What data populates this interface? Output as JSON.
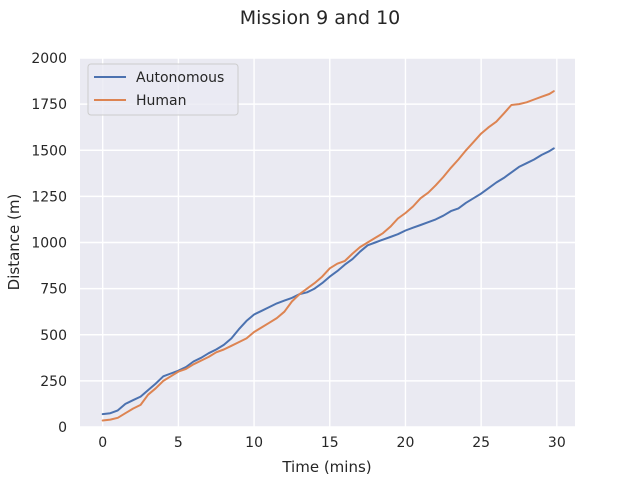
{
  "chart_data": {
    "type": "line",
    "title": "Mission 9 and 10",
    "xlabel": "Time (mins)",
    "ylabel": "Distance (m)",
    "xlim": [
      -1.5,
      31.2
    ],
    "ylim": [
      0,
      2000
    ],
    "xticks": [
      "0",
      "5",
      "10",
      "15",
      "20",
      "25",
      "30"
    ],
    "yticks": [
      "0",
      "250",
      "500",
      "750",
      "1000",
      "1250",
      "1500",
      "1750",
      "2000"
    ],
    "grid": true,
    "legend_position": "top-left",
    "series": [
      {
        "name": "Autonomous",
        "color": "#4c72b0",
        "x": [
          0,
          0.5,
          1,
          1.5,
          2,
          2.5,
          3,
          3.5,
          4,
          4.5,
          5,
          5.5,
          6,
          6.5,
          7,
          7.5,
          8,
          8.5,
          9,
          9.5,
          10,
          10.5,
          11,
          11.5,
          12,
          12.5,
          13,
          13.5,
          14,
          14.5,
          15,
          15.5,
          16,
          16.5,
          17,
          17.5,
          18,
          18.5,
          19,
          19.5,
          20,
          20.5,
          21,
          21.5,
          22,
          22.5,
          23,
          23.5,
          24,
          24.5,
          25,
          25.5,
          26,
          26.5,
          27,
          27.5,
          28,
          28.5,
          29,
          29.5,
          29.8
        ],
        "values": [
          70,
          75,
          90,
          125,
          145,
          165,
          200,
          235,
          275,
          290,
          305,
          325,
          355,
          375,
          400,
          420,
          445,
          480,
          530,
          575,
          610,
          630,
          650,
          670,
          685,
          700,
          720,
          730,
          750,
          780,
          815,
          845,
          880,
          910,
          950,
          985,
          1000,
          1015,
          1030,
          1045,
          1065,
          1080,
          1095,
          1110,
          1125,
          1145,
          1170,
          1185,
          1215,
          1240,
          1265,
          1295,
          1325,
          1350,
          1380,
          1410,
          1430,
          1450,
          1475,
          1495,
          1510
        ]
      },
      {
        "name": "Human",
        "color": "#dd8452",
        "x": [
          0,
          0.5,
          1,
          1.5,
          2,
          2.5,
          3,
          3.5,
          4,
          4.5,
          5,
          5.5,
          6,
          6.5,
          7,
          7.5,
          8,
          8.5,
          9,
          9.5,
          10,
          10.5,
          11,
          11.5,
          12,
          12.5,
          13,
          13.5,
          14,
          14.5,
          15,
          15.5,
          16,
          16.5,
          17,
          17.5,
          18,
          18.5,
          19,
          19.5,
          20,
          20.5,
          21,
          21.5,
          22,
          22.5,
          23,
          23.5,
          24,
          24.5,
          25,
          25.5,
          26,
          26.5,
          27,
          27.5,
          28,
          28.5,
          29,
          29.5,
          29.8
        ],
        "values": [
          35,
          40,
          50,
          75,
          100,
          120,
          175,
          210,
          250,
          275,
          300,
          315,
          340,
          360,
          380,
          405,
          420,
          440,
          460,
          480,
          515,
          540,
          565,
          590,
          625,
          680,
          720,
          750,
          780,
          815,
          860,
          885,
          900,
          940,
          975,
          1000,
          1025,
          1050,
          1085,
          1130,
          1160,
          1195,
          1240,
          1270,
          1310,
          1355,
          1405,
          1450,
          1500,
          1545,
          1590,
          1625,
          1655,
          1700,
          1745,
          1750,
          1760,
          1775,
          1790,
          1805,
          1820
        ]
      }
    ]
  }
}
